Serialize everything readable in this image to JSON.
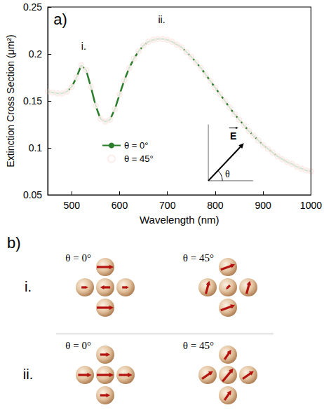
{
  "chart_data": {
    "type": "line",
    "panel_label": "a)",
    "x_label": "Wavelength (nm)",
    "y_label": "Extinction Cross Section (μm²)",
    "xlim": [
      450,
      1000
    ],
    "xticks": [
      500,
      600,
      700,
      800,
      900,
      1000
    ],
    "ylim": [
      0.05,
      0.25
    ],
    "yticks": [
      0.05,
      0.1,
      0.15,
      0.2,
      0.25
    ],
    "grid": false,
    "legend": "lower center",
    "x": [
      450,
      460,
      470,
      480,
      490,
      500,
      510,
      520,
      530,
      540,
      550,
      560,
      570,
      580,
      590,
      600,
      610,
      620,
      630,
      640,
      650,
      660,
      670,
      680,
      690,
      700,
      710,
      720,
      730,
      740,
      750,
      760,
      770,
      780,
      790,
      800,
      810,
      820,
      830,
      840,
      850,
      860,
      870,
      880,
      890,
      900,
      910,
      920,
      930,
      940,
      950,
      960,
      970,
      980,
      990,
      1000
    ],
    "series": [
      {
        "name": "θ = 0°",
        "type": "line",
        "color": "#2a7d2a",
        "marker": "none",
        "line_style": "solid",
        "values": [
          0.16,
          0.159,
          0.158,
          0.158,
          0.16,
          0.165,
          0.175,
          0.188,
          0.183,
          0.165,
          0.145,
          0.131,
          0.128,
          0.13,
          0.141,
          0.157,
          0.172,
          0.185,
          0.195,
          0.203,
          0.209,
          0.213,
          0.215,
          0.216,
          0.216,
          0.215,
          0.213,
          0.21,
          0.207,
          0.202,
          0.197,
          0.191,
          0.185,
          0.178,
          0.171,
          0.164,
          0.157,
          0.15,
          0.143,
          0.136,
          0.13,
          0.124,
          0.118,
          0.113,
          0.108,
          0.103,
          0.099,
          0.095,
          0.091,
          0.088,
          0.085,
          0.083,
          0.08,
          0.078,
          0.076,
          0.075
        ]
      },
      {
        "name": "θ = 45°",
        "type": "scatter",
        "color": "#c0392b",
        "marker": "circle",
        "values": [
          0.16,
          0.159,
          0.158,
          0.158,
          0.16,
          0.165,
          0.175,
          0.188,
          0.183,
          0.165,
          0.145,
          0.131,
          0.128,
          0.13,
          0.141,
          0.157,
          0.172,
          0.185,
          0.195,
          0.203,
          0.209,
          0.213,
          0.215,
          0.216,
          0.216,
          0.215,
          0.213,
          0.21,
          0.207,
          0.202,
          0.197,
          0.191,
          0.185,
          0.178,
          0.171,
          0.164,
          0.157,
          0.15,
          0.143,
          0.136,
          0.13,
          0.124,
          0.118,
          0.113,
          0.108,
          0.103,
          0.099,
          0.095,
          0.091,
          0.088,
          0.085,
          0.083,
          0.08,
          0.078,
          0.076,
          0.075
        ]
      }
    ],
    "annotations": [
      {
        "text": "i.",
        "x": 525,
        "y": 0.203
      },
      {
        "text": "ii.",
        "x": 688,
        "y": 0.231
      }
    ],
    "inset_labels": {
      "field": "E",
      "angle": "θ"
    }
  },
  "diagram": {
    "panel_label": "b)",
    "rows": [
      {
        "label": "i.",
        "configs": [
          {
            "label": "θ = 0°",
            "arrows": [
              {
                "position": "top",
                "angle": 0,
                "length": 1.0
              },
              {
                "position": "left",
                "angle": 0,
                "length": 0.4
              },
              {
                "position": "center",
                "angle": 180,
                "length": 0.6
              },
              {
                "position": "right",
                "angle": 0,
                "length": 0.4
              },
              {
                "position": "bottom",
                "angle": 0,
                "length": 1.0
              }
            ]
          },
          {
            "label": "θ = 45°",
            "arrows": [
              {
                "position": "top",
                "angle": 20,
                "length": 0.9
              },
              {
                "position": "left",
                "angle": 75,
                "length": 0.8
              },
              {
                "position": "center",
                "angle": 225,
                "length": 0.35
              },
              {
                "position": "right",
                "angle": 75,
                "length": 0.8
              },
              {
                "position": "bottom",
                "angle": 20,
                "length": 0.9
              }
            ]
          }
        ]
      },
      {
        "label": "ii.",
        "configs": [
          {
            "label": "θ = 0°",
            "arrows": [
              {
                "position": "top",
                "angle": 0,
                "length": 0.6
              },
              {
                "position": "left",
                "angle": 0,
                "length": 0.8
              },
              {
                "position": "center",
                "angle": 0,
                "length": 1.0
              },
              {
                "position": "right",
                "angle": 0,
                "length": 0.8
              },
              {
                "position": "bottom",
                "angle": 0,
                "length": 0.6
              }
            ]
          },
          {
            "label": "θ = 45°",
            "arrows": [
              {
                "position": "top",
                "angle": 55,
                "length": 0.7
              },
              {
                "position": "left",
                "angle": 35,
                "length": 0.8
              },
              {
                "position": "center",
                "angle": 50,
                "length": 1.0
              },
              {
                "position": "right",
                "angle": 35,
                "length": 0.8
              },
              {
                "position": "bottom",
                "angle": 55,
                "length": 0.7
              }
            ]
          }
        ]
      }
    ]
  }
}
